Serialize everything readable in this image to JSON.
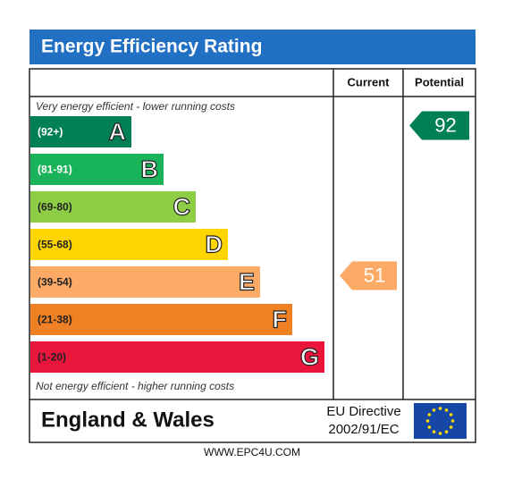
{
  "chart_data": {
    "type": "epc",
    "title": "Energy Efficiency Rating",
    "top_note": "Very energy efficient - lower running costs",
    "bottom_note": "Not energy efficient - higher running costs",
    "bands": [
      {
        "range": "(92+)",
        "letter": "A",
        "color": "#008054"
      },
      {
        "range": "(81-91)",
        "letter": "B",
        "color": "#19b459"
      },
      {
        "range": "(69-80)",
        "letter": "C",
        "color": "#8dce46"
      },
      {
        "range": "(55-68)",
        "letter": "D",
        "color": "#ffd500"
      },
      {
        "range": "(39-54)",
        "letter": "E",
        "color": "#fcaa65"
      },
      {
        "range": "(21-38)",
        "letter": "F",
        "color": "#ef8023"
      },
      {
        "range": "(1-20)",
        "letter": "G",
        "color": "#e9153b"
      }
    ],
    "ratings": [
      {
        "name": "Current",
        "value": 51
      },
      {
        "name": "Potential",
        "value": 92
      }
    ],
    "footer": {
      "region": "England & Wales",
      "directive": [
        "EU Directive",
        "2002/91/EC"
      ]
    },
    "website": "WWW.EPC4U.COM"
  }
}
